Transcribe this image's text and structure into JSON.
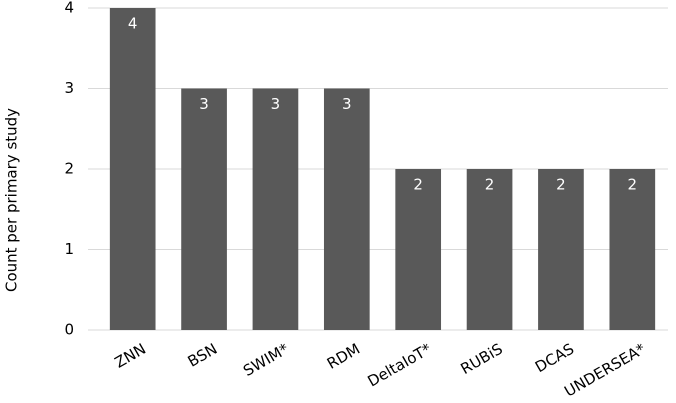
{
  "chart_data": {
    "type": "bar",
    "y_label": "Count per primary study",
    "categories": [
      "ZNN",
      "BSN",
      "SWIM*",
      "RDM",
      "DeltaIoT*",
      "RUBiS",
      "DCAS",
      "UNDERSEA*"
    ],
    "values": [
      4,
      3,
      3,
      3,
      2,
      2,
      2,
      2
    ],
    "color": "#595959",
    "ylim": [
      0,
      4
    ],
    "yticks": [
      0,
      1,
      2,
      3,
      4
    ],
    "grid": true
  }
}
